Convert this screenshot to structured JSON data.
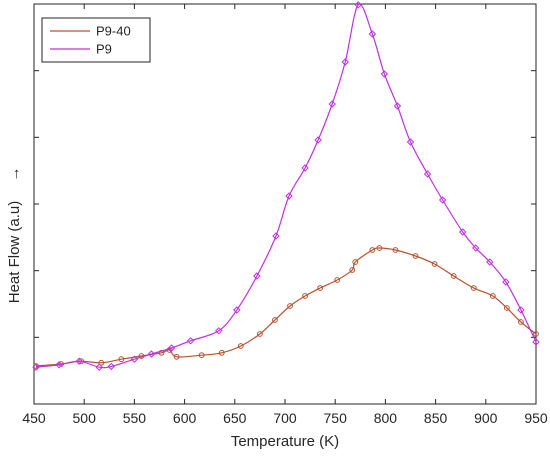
{
  "chart_data": {
    "type": "line",
    "title": "",
    "xlabel": "Temperature (K)",
    "ylabel": "Heat Flow (a.u)",
    "ylabel_arrow": "→",
    "xlim": [
      450,
      950
    ],
    "ylim": [
      0,
      1
    ],
    "x_ticks": [
      450,
      500,
      550,
      600,
      650,
      700,
      750,
      800,
      850,
      900,
      950
    ],
    "x_tick_labels": [
      "450",
      "500",
      "550",
      "600",
      "650",
      "700",
      "750",
      "800",
      "850",
      "900",
      "950"
    ],
    "y_tick_labels_shown": false,
    "grid": false,
    "legend_position": "top-left",
    "series": [
      {
        "name": "P9-40",
        "color": "#b5532f",
        "marker": "circle",
        "x": [
          452,
          477,
          497,
          517,
          537,
          557,
          577,
          585,
          592,
          617,
          637,
          656,
          675,
          690,
          705,
          720,
          735,
          752,
          767,
          770,
          787,
          794,
          810,
          830,
          849,
          868,
          888,
          907,
          921,
          935,
          950
        ],
        "y": [
          0.095,
          0.1,
          0.107,
          0.103,
          0.112,
          0.12,
          0.128,
          0.135,
          0.118,
          0.122,
          0.128,
          0.145,
          0.175,
          0.21,
          0.245,
          0.27,
          0.29,
          0.31,
          0.335,
          0.355,
          0.385,
          0.39,
          0.385,
          0.37,
          0.35,
          0.32,
          0.29,
          0.27,
          0.24,
          0.205,
          0.175
        ]
      },
      {
        "name": "P9",
        "color": "#c030e0",
        "marker": "diamond",
        "x": [
          452,
          475,
          495,
          515,
          527,
          550,
          567,
          587,
          606,
          634,
          652,
          672,
          691,
          704,
          720,
          733,
          747,
          760,
          773,
          787,
          799,
          812,
          825,
          842,
          857,
          877,
          890,
          904,
          920,
          935,
          950
        ],
        "y": [
          0.092,
          0.098,
          0.107,
          0.092,
          0.094,
          0.112,
          0.125,
          0.14,
          0.158,
          0.183,
          0.235,
          0.32,
          0.42,
          0.52,
          0.59,
          0.66,
          0.75,
          0.855,
          0.998,
          0.925,
          0.825,
          0.745,
          0.655,
          0.575,
          0.51,
          0.43,
          0.39,
          0.355,
          0.305,
          0.235,
          0.155
        ]
      }
    ]
  }
}
